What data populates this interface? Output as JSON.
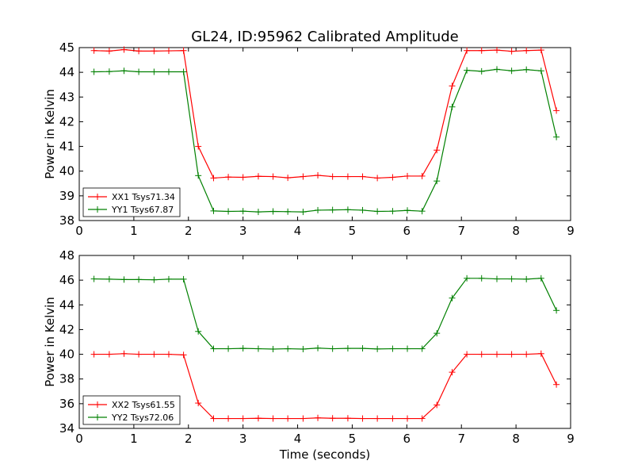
{
  "chart_data": [
    {
      "type": "line",
      "title": "GL24, ID:95962 Calibrated Amplitude",
      "xlabel": "",
      "ylabel": "Power in Kelvin",
      "xlim": [
        0,
        9
      ],
      "ylim": [
        38,
        45
      ],
      "xticks": [
        "0",
        "1",
        "2",
        "3",
        "4",
        "5",
        "6",
        "7",
        "8",
        "9"
      ],
      "yticks": [
        "38",
        "39",
        "40",
        "41",
        "42",
        "43",
        "44",
        "45"
      ],
      "legend_position": "lower-left",
      "x": [
        0.27,
        0.55,
        0.82,
        1.09,
        1.37,
        1.64,
        1.91,
        2.18,
        2.46,
        2.73,
        3.0,
        3.28,
        3.55,
        3.82,
        4.1,
        4.37,
        4.64,
        4.92,
        5.19,
        5.46,
        5.74,
        6.01,
        6.28,
        6.55,
        6.83,
        7.1,
        7.37,
        7.65,
        7.92,
        8.19,
        8.46,
        8.74
      ],
      "series": [
        {
          "name": "XX1 Tsys71.34",
          "color": "#ff0000",
          "values": [
            44.88,
            44.86,
            44.92,
            44.86,
            44.86,
            44.87,
            44.88,
            41.0,
            39.72,
            39.76,
            39.75,
            39.79,
            39.78,
            39.73,
            39.78,
            39.83,
            39.78,
            39.78,
            39.78,
            39.72,
            39.75,
            39.8,
            39.8,
            40.85,
            43.45,
            44.88,
            44.88,
            44.9,
            44.85,
            44.88,
            44.9,
            42.45
          ]
        },
        {
          "name": "YY1 Tsys67.87",
          "color": "#008000",
          "values": [
            44.02,
            44.03,
            44.06,
            44.02,
            44.02,
            44.02,
            44.02,
            39.82,
            38.39,
            38.37,
            38.38,
            38.35,
            38.37,
            38.36,
            38.35,
            38.42,
            38.43,
            38.44,
            38.42,
            38.37,
            38.38,
            38.41,
            38.38,
            39.6,
            42.6,
            44.08,
            44.04,
            44.12,
            44.06,
            44.11,
            44.06,
            41.38
          ]
        }
      ]
    },
    {
      "type": "line",
      "title": "",
      "xlabel": "Time (seconds)",
      "ylabel": "Power in Kelvin",
      "xlim": [
        0,
        9
      ],
      "ylim": [
        34,
        48
      ],
      "xticks": [
        "0",
        "1",
        "2",
        "3",
        "4",
        "5",
        "6",
        "7",
        "8",
        "9"
      ],
      "yticks": [
        "34",
        "36",
        "38",
        "40",
        "42",
        "44",
        "46",
        "48"
      ],
      "legend_position": "lower-left",
      "x": [
        0.27,
        0.55,
        0.82,
        1.09,
        1.37,
        1.64,
        1.91,
        2.18,
        2.46,
        2.73,
        3.0,
        3.28,
        3.55,
        3.82,
        4.1,
        4.37,
        4.64,
        4.92,
        5.19,
        5.46,
        5.74,
        6.01,
        6.28,
        6.55,
        6.83,
        7.1,
        7.37,
        7.65,
        7.92,
        8.19,
        8.46,
        8.74
      ],
      "series": [
        {
          "name": "XX2 Tsys61.55",
          "color": "#ff0000",
          "values": [
            40.0,
            40.0,
            40.05,
            40.0,
            40.0,
            40.0,
            39.95,
            36.05,
            34.8,
            34.8,
            34.8,
            34.82,
            34.8,
            34.8,
            34.8,
            34.85,
            34.82,
            34.82,
            34.8,
            34.8,
            34.8,
            34.8,
            34.8,
            35.9,
            38.55,
            40.0,
            40.0,
            40.0,
            40.0,
            40.0,
            40.05,
            37.55
          ]
        },
        {
          "name": "YY2 Tsys72.06",
          "color": "#008000",
          "values": [
            46.1,
            46.08,
            46.05,
            46.05,
            46.03,
            46.08,
            46.08,
            41.85,
            40.45,
            40.45,
            40.48,
            40.45,
            40.42,
            40.45,
            40.42,
            40.5,
            40.45,
            40.48,
            40.48,
            40.43,
            40.45,
            40.45,
            40.45,
            41.7,
            44.55,
            46.15,
            46.15,
            46.1,
            46.1,
            46.08,
            46.15,
            43.55
          ]
        }
      ]
    }
  ]
}
